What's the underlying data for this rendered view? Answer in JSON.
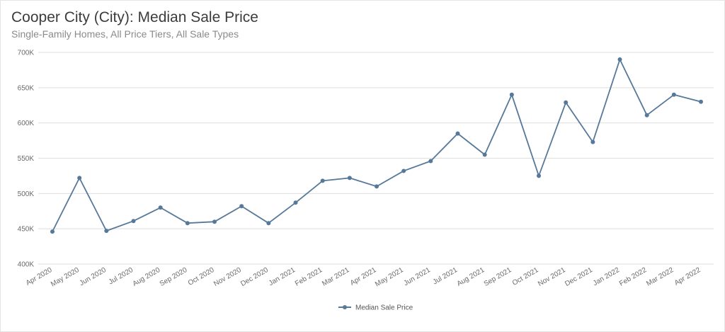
{
  "chart_data": {
    "type": "line",
    "title": "Cooper City (City): Median Sale Price",
    "subtitle": "Single-Family Homes, All Price Tiers, All Sale Types",
    "categories": [
      "Apr 2020",
      "May 2020",
      "Jun 2020",
      "Jul 2020",
      "Aug 2020",
      "Sep 2020",
      "Oct 2020",
      "Nov 2020",
      "Dec 2020",
      "Jan 2021",
      "Feb 2021",
      "Mar 2021",
      "Apr 2021",
      "May 2021",
      "Jun 2021",
      "Jul 2021",
      "Aug 2021",
      "Sep 2021",
      "Oct 2021",
      "Nov 2021",
      "Dec 2021",
      "Jan 2022",
      "Feb 2022",
      "Mar 2022",
      "Apr 2022"
    ],
    "series": [
      {
        "name": "Median Sale Price",
        "color": "#56799a",
        "values": [
          446000,
          522000,
          447000,
          461000,
          480000,
          458000,
          460000,
          482000,
          458000,
          487000,
          518000,
          522000,
          510000,
          532000,
          546000,
          585000,
          555000,
          640000,
          525000,
          629000,
          573000,
          690000,
          611000,
          640000,
          630000
        ]
      }
    ],
    "yticks": [
      "400K",
      "450K",
      "500K",
      "550K",
      "600K",
      "650K",
      "700K"
    ],
    "ylim": [
      400000,
      700000
    ],
    "xlabel": "",
    "ylabel": "",
    "grid": true,
    "legend": "bottom-center"
  }
}
